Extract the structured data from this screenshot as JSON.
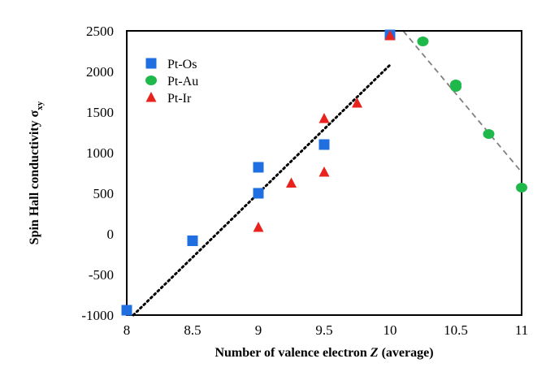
{
  "chart_data": {
    "type": "scatter",
    "title": "",
    "xlabel": {
      "prefix": "Number of  valence electron ",
      "italic": "Z",
      "suffix": " (average)"
    },
    "ylabel": {
      "main": "Spin Hall conductivity σ",
      "sub": "xy"
    },
    "xlim": [
      8,
      11
    ],
    "ylim": [
      -1000,
      2500
    ],
    "x_ticks": [
      "8",
      "8.5",
      "9",
      "9.5",
      "10",
      "10.5",
      "11"
    ],
    "y_ticks": [
      "-1000",
      "-500",
      "0",
      "500",
      "1000",
      "1500",
      "2000",
      "2500"
    ],
    "grid": false,
    "legend_position": "top-left",
    "series": [
      {
        "name": "Pt-Os",
        "marker": "square",
        "color": "#1f6fe0",
        "points": [
          [
            8,
            -940
          ],
          [
            8.5,
            -85
          ],
          [
            9,
            820
          ],
          [
            9,
            500
          ],
          [
            9.5,
            1100
          ],
          [
            10,
            2450
          ]
        ]
      },
      {
        "name": "Pt-Au",
        "marker": "circle",
        "color": "#1fb84a",
        "points": [
          [
            10.25,
            2370
          ],
          [
            10.5,
            1840
          ],
          [
            10.5,
            1810
          ],
          [
            10.75,
            1230
          ],
          [
            11,
            570
          ]
        ]
      },
      {
        "name": "Pt-Ir",
        "marker": "triangle",
        "color": "#e8231e",
        "points": [
          [
            9,
            80
          ],
          [
            9.25,
            625
          ],
          [
            9.5,
            1420
          ],
          [
            9.5,
            760
          ],
          [
            9.75,
            1610
          ],
          [
            10,
            2440
          ]
        ]
      }
    ],
    "trendlines": [
      {
        "style": "dotted",
        "color": "#000000",
        "from": [
          8.05,
          -1000
        ],
        "to": [
          10,
          2080
        ]
      },
      {
        "style": "dashed",
        "color": "#808080",
        "from": [
          10.1,
          2500
        ],
        "to": [
          11,
          760
        ]
      }
    ]
  }
}
